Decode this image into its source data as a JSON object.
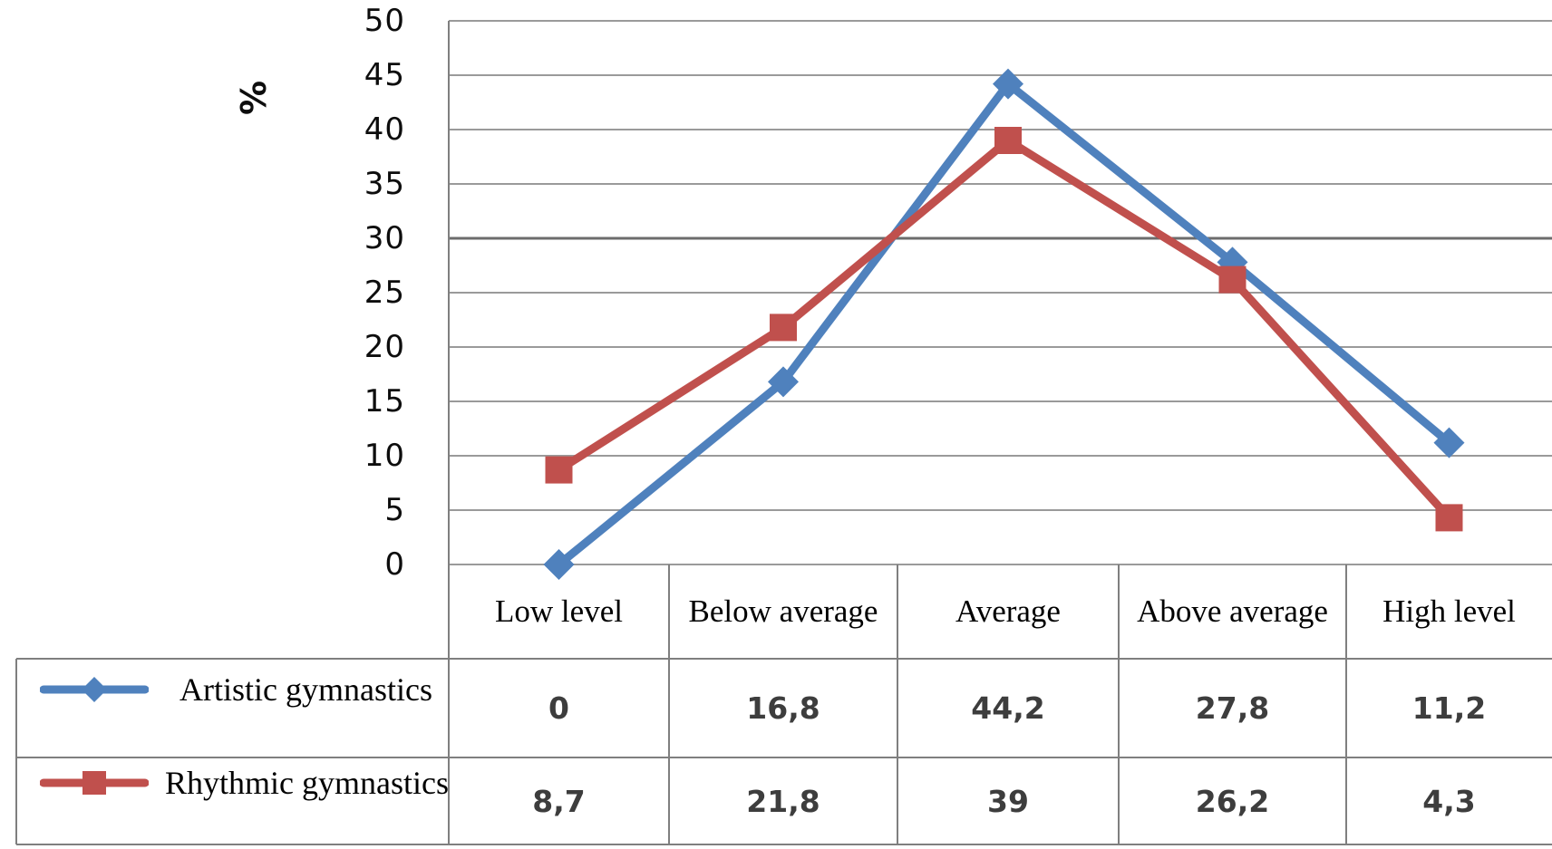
{
  "chart_data": {
    "type": "line",
    "title": "",
    "ylabel": "%",
    "xlabel": "",
    "ylim": [
      0,
      50
    ],
    "ytick_step": 5,
    "yticks": [
      "50",
      "45",
      "40",
      "35",
      "30",
      "25",
      "20",
      "15",
      "10",
      "5",
      "0"
    ],
    "grid": true,
    "legend_position": "table-left",
    "categories": [
      "Low level",
      "Below average",
      "Average",
      "Above average",
      "High level"
    ],
    "series": [
      {
        "name": "Artistic gymnastics",
        "color": "#4F81BD",
        "marker": "diamond",
        "values": [
          0,
          16.8,
          44.2,
          27.8,
          11.2
        ],
        "labels": [
          "0",
          "16,8",
          "44,2",
          "27,8",
          "11,2"
        ]
      },
      {
        "name": "Rhythmic gymnastics",
        "color": "#C0504D",
        "marker": "square",
        "values": [
          8.7,
          21.8,
          39,
          26.2,
          4.3
        ],
        "labels": [
          "8,7",
          "21,8",
          "39",
          "26,2",
          "4,3"
        ]
      }
    ],
    "colors": {
      "gridline": "#9a9a9a",
      "gridline_dark": "#6c6c6c",
      "table_border": "#7f7f7f"
    }
  }
}
